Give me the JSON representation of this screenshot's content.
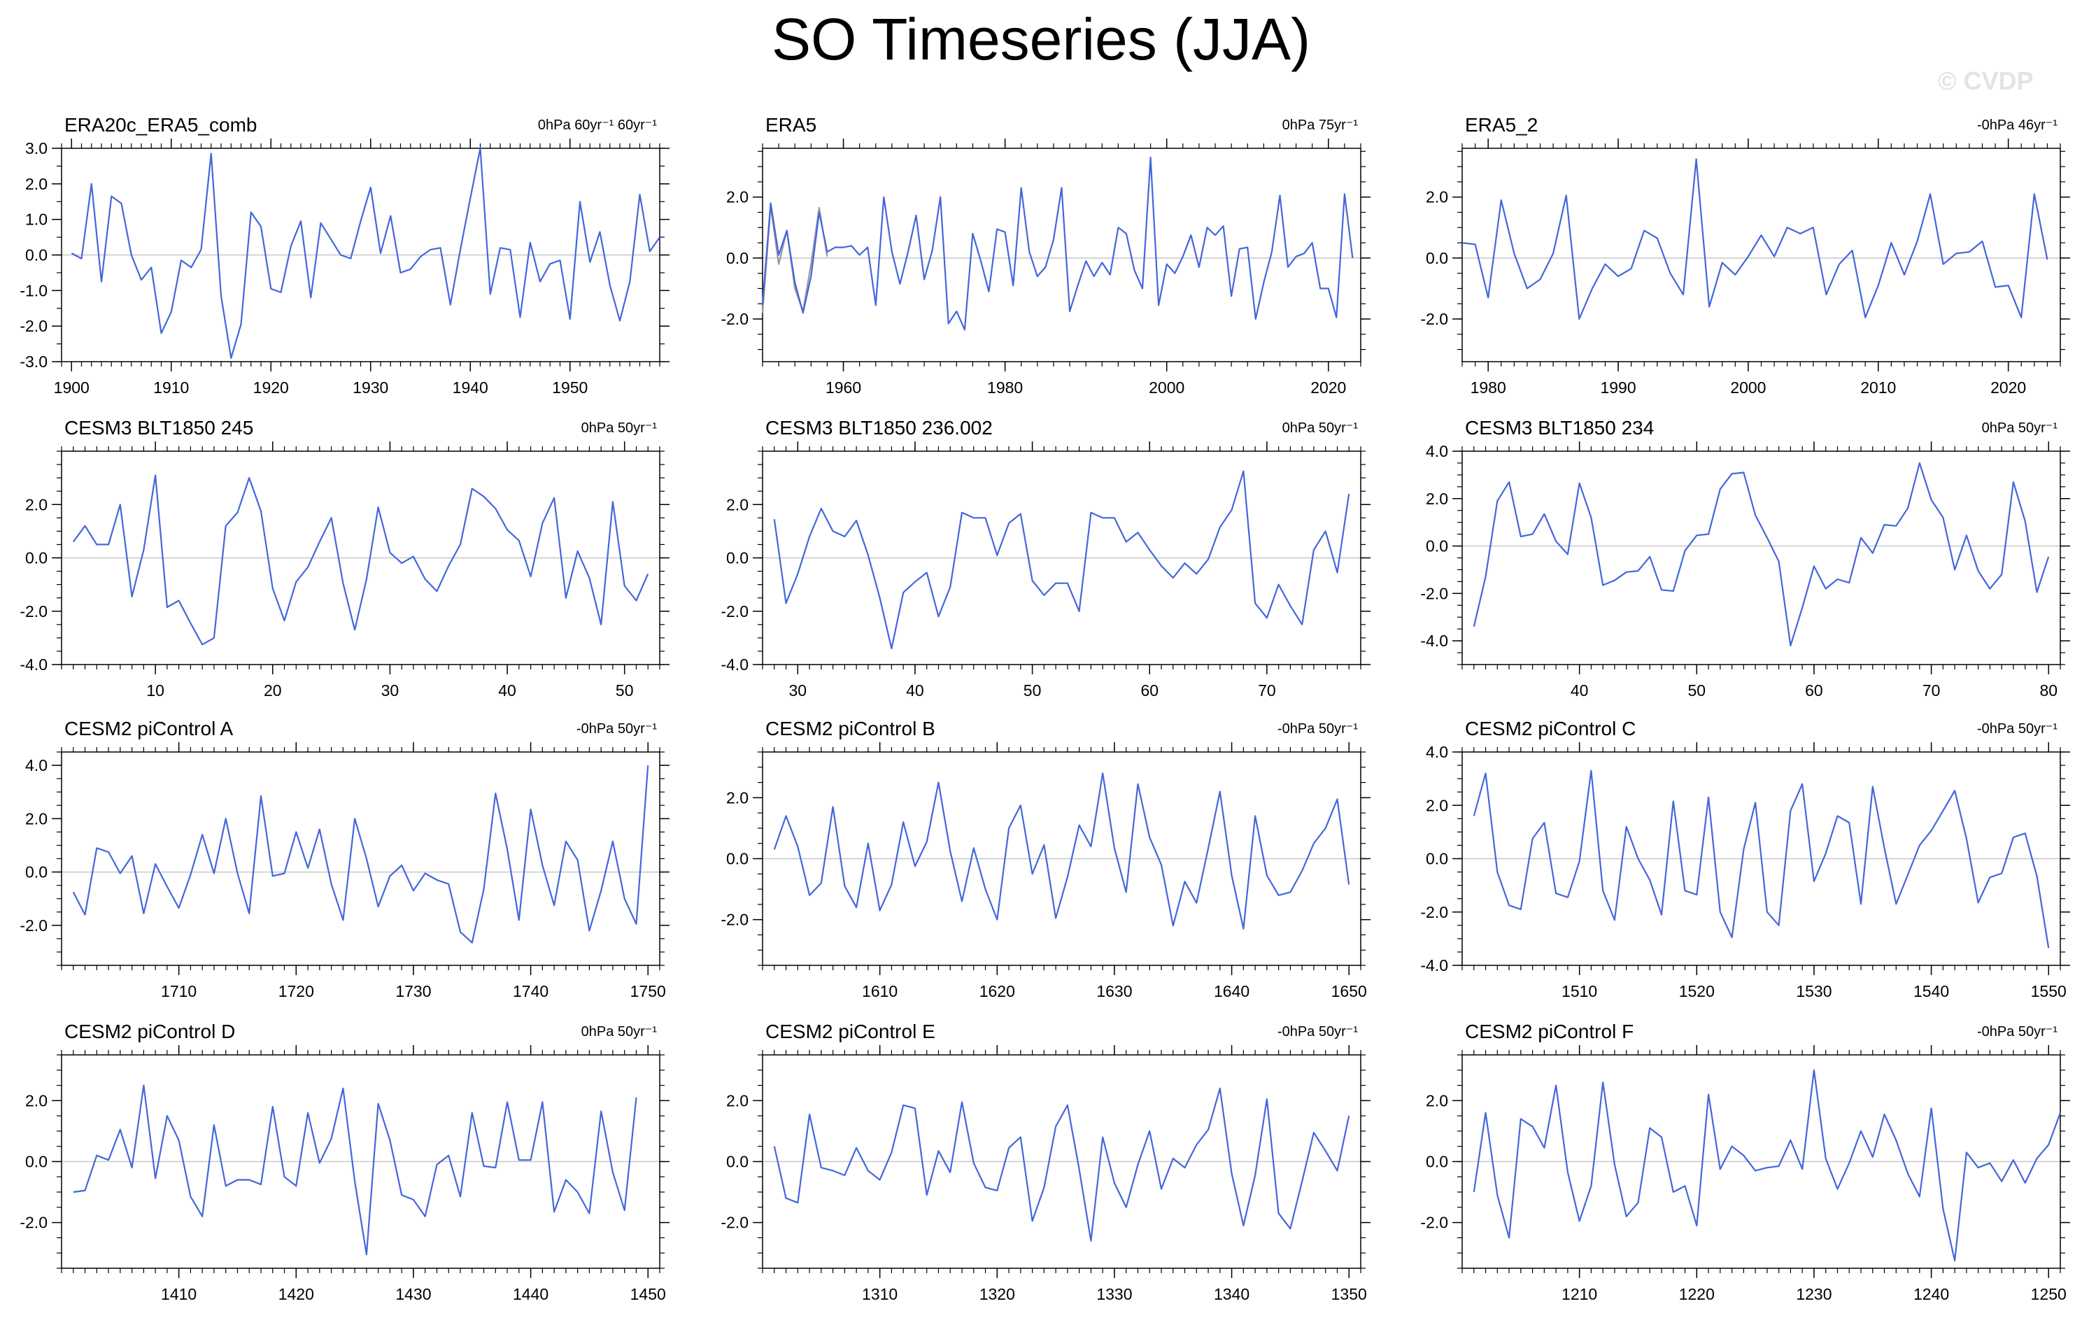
{
  "title": "SO Timeseries (JJA)",
  "watermark": "© CVDP",
  "colors": {
    "line": "#4466dd",
    "overlay": "#999999",
    "zero": "#c8c8c8",
    "axis": "#000000"
  },
  "chart_data": [
    {
      "type": "line",
      "title": "ERA20c_ERA5_comb",
      "annotation": "0hPa 60yr⁻¹ 60yr⁻¹",
      "xlim": [
        1899,
        1959
      ],
      "ylim": [
        -3.0,
        3.0
      ],
      "yticks": [
        -3.0,
        -2.0,
        -1.0,
        0.0,
        1.0,
        2.0,
        3.0
      ],
      "xticks": [
        1900,
        1910,
        1920,
        1930,
        1940,
        1950
      ],
      "x_start": 1900,
      "series": [
        {
          "name": "ERA20c_ERA5_comb",
          "values": [
            0.05,
            -0.1,
            2.0,
            -0.75,
            1.65,
            1.45,
            0.0,
            -0.7,
            -0.35,
            -2.2,
            -1.6,
            -0.15,
            -0.35,
            0.15,
            2.85,
            -1.15,
            -2.9,
            -1.95,
            1.2,
            0.8,
            -0.95,
            -1.05,
            0.25,
            0.95,
            -1.2,
            0.9,
            0.45,
            0.0,
            -0.1,
            0.95,
            1.9,
            0.05,
            1.1,
            -0.5,
            -0.4,
            -0.05,
            0.15,
            0.2,
            -1.4,
            0.15,
            1.6,
            3.0,
            -1.1,
            0.2,
            0.15,
            -1.75,
            0.35,
            -0.75,
            -0.25,
            -0.15,
            -1.8,
            1.5,
            -0.2,
            0.65,
            -0.85,
            -1.85,
            -0.75,
            1.7,
            0.1,
            0.5
          ]
        }
      ]
    },
    {
      "type": "line",
      "title": "ERA5",
      "annotation": "0hPa 75yr⁻¹",
      "xlim": [
        1950,
        2024
      ],
      "ylim": [
        -3.4,
        3.6
      ],
      "yticks": [
        -2.0,
        0.0,
        2.0
      ],
      "xticks": [
        1960,
        1980,
        2000,
        2020
      ],
      "x_start": 1950,
      "series": [
        {
          "name": "overlay",
          "values": [
            -1.8,
            1.7,
            -0.2,
            0.9,
            -1.0,
            -1.75,
            -0.2,
            1.65,
            0.05
          ]
        },
        {
          "name": "ERA5",
          "values": [
            -1.5,
            1.8,
            0.1,
            0.9,
            -0.8,
            -1.8,
            -0.6,
            1.5,
            0.2,
            0.35,
            0.35,
            0.4,
            0.1,
            0.35,
            -1.55,
            2.0,
            0.2,
            -0.85,
            0.2,
            1.4,
            -0.7,
            0.25,
            2.0,
            -2.15,
            -1.75,
            -2.35,
            0.8,
            -0.1,
            -1.1,
            0.95,
            0.85,
            -0.9,
            2.3,
            0.2,
            -0.6,
            -0.3,
            0.6,
            2.3,
            -1.75,
            -0.9,
            -0.1,
            -0.6,
            -0.15,
            -0.55,
            1.0,
            0.8,
            -0.4,
            -1.0,
            3.3,
            -1.55,
            -0.2,
            -0.5,
            0.05,
            0.75,
            -0.3,
            1.0,
            0.75,
            1.05,
            -1.25,
            0.3,
            0.35,
            -2.0,
            -0.8,
            0.2,
            2.05,
            -0.3,
            0.05,
            0.15,
            0.5,
            -1.0,
            -1.0,
            -1.95,
            2.1,
            0.0
          ]
        }
      ]
    },
    {
      "type": "line",
      "title": "ERA5_2",
      "annotation": "-0hPa 46yr⁻¹",
      "xlim": [
        1978,
        2024
      ],
      "ylim": [
        -3.4,
        3.6
      ],
      "yticks": [
        -2.0,
        0.0,
        2.0
      ],
      "xticks": [
        1980,
        1990,
        2000,
        2010,
        2020
      ],
      "x_start": 1978,
      "series": [
        {
          "name": "ERA5_2",
          "values": [
            0.5,
            0.45,
            -1.3,
            1.9,
            0.15,
            -1.0,
            -0.7,
            0.15,
            2.05,
            -2.0,
            -1.0,
            -0.2,
            -0.6,
            -0.35,
            0.9,
            0.65,
            -0.5,
            -1.2,
            3.25,
            -1.6,
            -0.15,
            -0.55,
            0.05,
            0.75,
            0.05,
            1.0,
            0.8,
            1.0,
            -1.2,
            -0.2,
            0.25,
            -1.95,
            -0.9,
            0.5,
            -0.55,
            0.55,
            2.1,
            -0.2,
            0.15,
            0.2,
            0.55,
            -0.95,
            -0.9,
            -1.95,
            2.1,
            -0.05
          ]
        }
      ]
    },
    {
      "type": "line",
      "title": "CESM3 BLT1850 245",
      "annotation": "0hPa 50yr⁻¹",
      "xlim": [
        2,
        53
      ],
      "ylim": [
        -4.0,
        4.0
      ],
      "yticks": [
        -4.0,
        -2.0,
        0.0,
        2.0
      ],
      "xticks": [
        10,
        20,
        30,
        40,
        50
      ],
      "x_start": 3,
      "series": [
        {
          "name": "CESM3 BLT1850 245",
          "values": [
            0.6,
            1.2,
            0.5,
            0.5,
            2.0,
            -1.45,
            0.3,
            3.1,
            -1.85,
            -1.6,
            -2.45,
            -3.25,
            -3.0,
            1.2,
            1.7,
            3.0,
            1.75,
            -1.15,
            -2.35,
            -0.9,
            -0.35,
            0.6,
            1.5,
            -0.95,
            -2.7,
            -0.8,
            1.9,
            0.2,
            -0.2,
            0.05,
            -0.8,
            -1.25,
            -0.3,
            0.5,
            2.6,
            2.3,
            1.85,
            1.05,
            0.65,
            -0.7,
            1.3,
            2.25,
            -1.5,
            0.25,
            -0.75,
            -2.5,
            2.1,
            -1.05,
            -1.6,
            -0.6
          ]
        }
      ]
    },
    {
      "type": "line",
      "title": "CESM3 BLT1850 236.002",
      "annotation": "0hPa 50yr⁻¹",
      "xlim": [
        27,
        78
      ],
      "ylim": [
        -4.0,
        4.0
      ],
      "yticks": [
        -4.0,
        -2.0,
        0.0,
        2.0
      ],
      "xticks": [
        30,
        40,
        50,
        60,
        70
      ],
      "x_start": 28,
      "series": [
        {
          "name": "CESM3 BLT1850 236.002",
          "values": [
            1.45,
            -1.7,
            -0.6,
            0.8,
            1.85,
            1.0,
            0.8,
            1.4,
            0.1,
            -1.5,
            -3.4,
            -1.3,
            -0.9,
            -0.55,
            -2.2,
            -1.1,
            1.7,
            1.5,
            1.5,
            0.1,
            1.3,
            1.65,
            -0.85,
            -1.4,
            -0.95,
            -0.95,
            -2.0,
            1.7,
            1.5,
            1.5,
            0.6,
            0.95,
            0.3,
            -0.3,
            -0.75,
            -0.2,
            -0.6,
            -0.05,
            1.15,
            1.8,
            3.25,
            -1.7,
            -2.25,
            -1.0,
            -1.8,
            -2.5,
            0.3,
            1.0,
            -0.55,
            2.4
          ]
        }
      ]
    },
    {
      "type": "line",
      "title": "CESM3 BLT1850 234",
      "annotation": "0hPa 50yr⁻¹",
      "xlim": [
        30,
        81
      ],
      "ylim": [
        -5.0,
        4.0
      ],
      "yticks": [
        -4.0,
        -2.0,
        0.0,
        2.0,
        4.0
      ],
      "xticks": [
        40,
        50,
        60,
        70,
        80
      ],
      "x_start": 31,
      "series": [
        {
          "name": "CESM3 BLT1850 234",
          "values": [
            -3.4,
            -1.3,
            1.9,
            2.7,
            0.4,
            0.5,
            1.35,
            0.2,
            -0.35,
            2.65,
            1.2,
            -1.65,
            -1.45,
            -1.1,
            -1.05,
            -0.45,
            -1.85,
            -1.9,
            -0.2,
            0.45,
            0.5,
            2.4,
            3.05,
            3.1,
            1.3,
            0.35,
            -0.65,
            -4.2,
            -2.6,
            -0.85,
            -1.8,
            -1.4,
            -1.55,
            0.35,
            -0.3,
            0.9,
            0.85,
            1.6,
            3.5,
            1.95,
            1.2,
            -1.0,
            0.45,
            -1.05,
            -1.8,
            -1.2,
            2.7,
            1.05,
            -1.95,
            -0.45
          ]
        }
      ]
    },
    {
      "type": "line",
      "title": "CESM2 piControl A",
      "annotation": "-0hPa 50yr⁻¹",
      "xlim": [
        1700,
        1751
      ],
      "ylim": [
        -3.5,
        4.5
      ],
      "yticks": [
        -2.0,
        0.0,
        2.0,
        4.0
      ],
      "xticks": [
        1710,
        1720,
        1730,
        1740,
        1750
      ],
      "x_start": 1701,
      "series": [
        {
          "name": "CESM2 piControl A",
          "values": [
            -0.75,
            -1.6,
            0.9,
            0.75,
            -0.05,
            0.6,
            -1.55,
            0.3,
            -0.55,
            -1.35,
            -0.1,
            1.4,
            -0.05,
            2.0,
            -0.05,
            -1.55,
            2.85,
            -0.15,
            -0.05,
            1.5,
            0.15,
            1.6,
            -0.45,
            -1.8,
            2.0,
            0.5,
            -1.3,
            -0.15,
            0.25,
            -0.7,
            -0.05,
            -0.3,
            -0.45,
            -2.25,
            -2.65,
            -0.65,
            2.95,
            0.85,
            -1.8,
            2.35,
            0.25,
            -1.25,
            1.15,
            0.45,
            -2.2,
            -0.7,
            1.15,
            -1.0,
            -1.95,
            4.0
          ]
        }
      ]
    },
    {
      "type": "line",
      "title": "CESM2 piControl B",
      "annotation": "-0hPa 50yr⁻¹",
      "xlim": [
        1600,
        1651
      ],
      "ylim": [
        -3.5,
        3.5
      ],
      "yticks": [
        -2.0,
        0.0,
        2.0
      ],
      "xticks": [
        1610,
        1620,
        1630,
        1640,
        1650
      ],
      "x_start": 1601,
      "series": [
        {
          "name": "CESM2 piControl B",
          "values": [
            0.3,
            1.4,
            0.4,
            -1.2,
            -0.8,
            1.7,
            -0.9,
            -1.6,
            0.5,
            -1.7,
            -0.85,
            1.2,
            -0.25,
            0.55,
            2.5,
            0.25,
            -1.4,
            0.35,
            -1.0,
            -2.0,
            1.0,
            1.75,
            -0.5,
            0.45,
            -1.95,
            -0.6,
            1.1,
            0.4,
            2.8,
            0.35,
            -1.1,
            2.45,
            0.7,
            -0.2,
            -2.2,
            -0.75,
            -1.45,
            0.35,
            2.2,
            -0.55,
            -2.3,
            1.4,
            -0.55,
            -1.2,
            -1.1,
            -0.4,
            0.5,
            1.0,
            1.95,
            -0.85
          ]
        }
      ]
    },
    {
      "type": "line",
      "title": "CESM2 piControl C",
      "annotation": "-0hPa 50yr⁻¹",
      "xlim": [
        1500,
        1551
      ],
      "ylim": [
        -4.0,
        4.0
      ],
      "yticks": [
        -4.0,
        -2.0,
        0.0,
        2.0,
        4.0
      ],
      "xticks": [
        1510,
        1520,
        1530,
        1540,
        1550
      ],
      "x_start": 1501,
      "series": [
        {
          "name": "CESM2 piControl C",
          "values": [
            1.6,
            3.2,
            -0.5,
            -1.75,
            -1.9,
            0.75,
            1.35,
            -1.3,
            -1.45,
            -0.1,
            3.3,
            -1.2,
            -2.3,
            1.2,
            0.0,
            -0.8,
            -2.1,
            2.15,
            -1.2,
            -1.35,
            2.3,
            -2.0,
            -2.95,
            0.35,
            2.1,
            -2.0,
            -2.5,
            1.8,
            2.8,
            -0.85,
            0.2,
            1.6,
            1.35,
            -1.7,
            2.7,
            0.4,
            -1.7,
            -0.6,
            0.5,
            1.05,
            1.8,
            2.55,
            0.75,
            -1.65,
            -0.7,
            -0.55,
            0.8,
            0.95,
            -0.65,
            -3.35
          ]
        }
      ]
    },
    {
      "type": "line",
      "title": "CESM2 piControl D",
      "annotation": "0hPa 50yr⁻¹",
      "xlim": [
        1400,
        1451
      ],
      "ylim": [
        -3.5,
        3.5
      ],
      "yticks": [
        -2.0,
        0.0,
        2.0
      ],
      "xticks": [
        1410,
        1420,
        1430,
        1440,
        1450
      ],
      "x_start": 1401,
      "series": [
        {
          "name": "CESM2 piControl D",
          "values": [
            -1.0,
            -0.95,
            0.2,
            0.05,
            1.05,
            -0.2,
            2.5,
            -0.55,
            1.5,
            0.7,
            -1.15,
            -1.8,
            1.2,
            -0.8,
            -0.6,
            -0.6,
            -0.75,
            1.8,
            -0.5,
            -0.8,
            1.6,
            -0.05,
            0.75,
            2.4,
            -0.65,
            -3.05,
            1.9,
            0.7,
            -1.1,
            -1.25,
            -1.8,
            -0.1,
            0.2,
            -1.15,
            1.6,
            -0.15,
            -0.2,
            1.95,
            0.05,
            0.05,
            1.95,
            -1.65,
            -0.6,
            -1.0,
            -1.7,
            1.65,
            -0.35,
            -1.6,
            2.1
          ]
        }
      ]
    },
    {
      "type": "line",
      "title": "CESM2 piControl E",
      "annotation": "-0hPa 50yr⁻¹",
      "xlim": [
        1300,
        1351
      ],
      "ylim": [
        -3.5,
        3.5
      ],
      "yticks": [
        -2.0,
        0.0,
        2.0
      ],
      "xticks": [
        1310,
        1320,
        1330,
        1340,
        1350
      ],
      "x_start": 1301,
      "series": [
        {
          "name": "CESM2 piControl E",
          "values": [
            0.5,
            -1.2,
            -1.35,
            1.55,
            -0.2,
            -0.3,
            -0.45,
            0.45,
            -0.3,
            -0.6,
            0.3,
            1.85,
            1.75,
            -1.1,
            0.35,
            -0.35,
            1.95,
            -0.05,
            -0.85,
            -0.95,
            0.45,
            0.8,
            -1.95,
            -0.85,
            1.15,
            1.85,
            -0.25,
            -2.6,
            0.8,
            -0.7,
            -1.5,
            -0.1,
            1.0,
            -0.9,
            0.1,
            -0.2,
            0.55,
            1.05,
            2.4,
            -0.4,
            -2.1,
            -0.45,
            2.05,
            -1.7,
            -2.2,
            -0.65,
            0.95,
            0.35,
            -0.3,
            1.5
          ]
        }
      ]
    },
    {
      "type": "line",
      "title": "CESM2 piControl F",
      "annotation": "-0hPa 50yr⁻¹",
      "xlim": [
        1200,
        1251
      ],
      "ylim": [
        -3.5,
        3.5
      ],
      "yticks": [
        -2.0,
        0.0,
        2.0
      ],
      "xticks": [
        1210,
        1220,
        1230,
        1240,
        1250
      ],
      "x_start": 1201,
      "series": [
        {
          "name": "CESM2 piControl F",
          "values": [
            -1.0,
            1.6,
            -1.1,
            -2.5,
            1.4,
            1.15,
            0.45,
            2.5,
            -0.35,
            -1.95,
            -0.8,
            2.6,
            -0.1,
            -1.8,
            -1.35,
            1.1,
            0.8,
            -1.0,
            -0.8,
            -2.1,
            2.2,
            -0.25,
            0.5,
            0.2,
            -0.3,
            -0.2,
            -0.15,
            0.7,
            -0.25,
            3.0,
            0.1,
            -0.9,
            -0.05,
            1.0,
            0.15,
            1.55,
            0.7,
            -0.4,
            -1.15,
            1.75,
            -1.55,
            -3.25,
            0.3,
            -0.2,
            -0.05,
            -0.65,
            0.05,
            -0.7,
            0.1,
            0.55,
            1.6
          ]
        }
      ]
    }
  ]
}
